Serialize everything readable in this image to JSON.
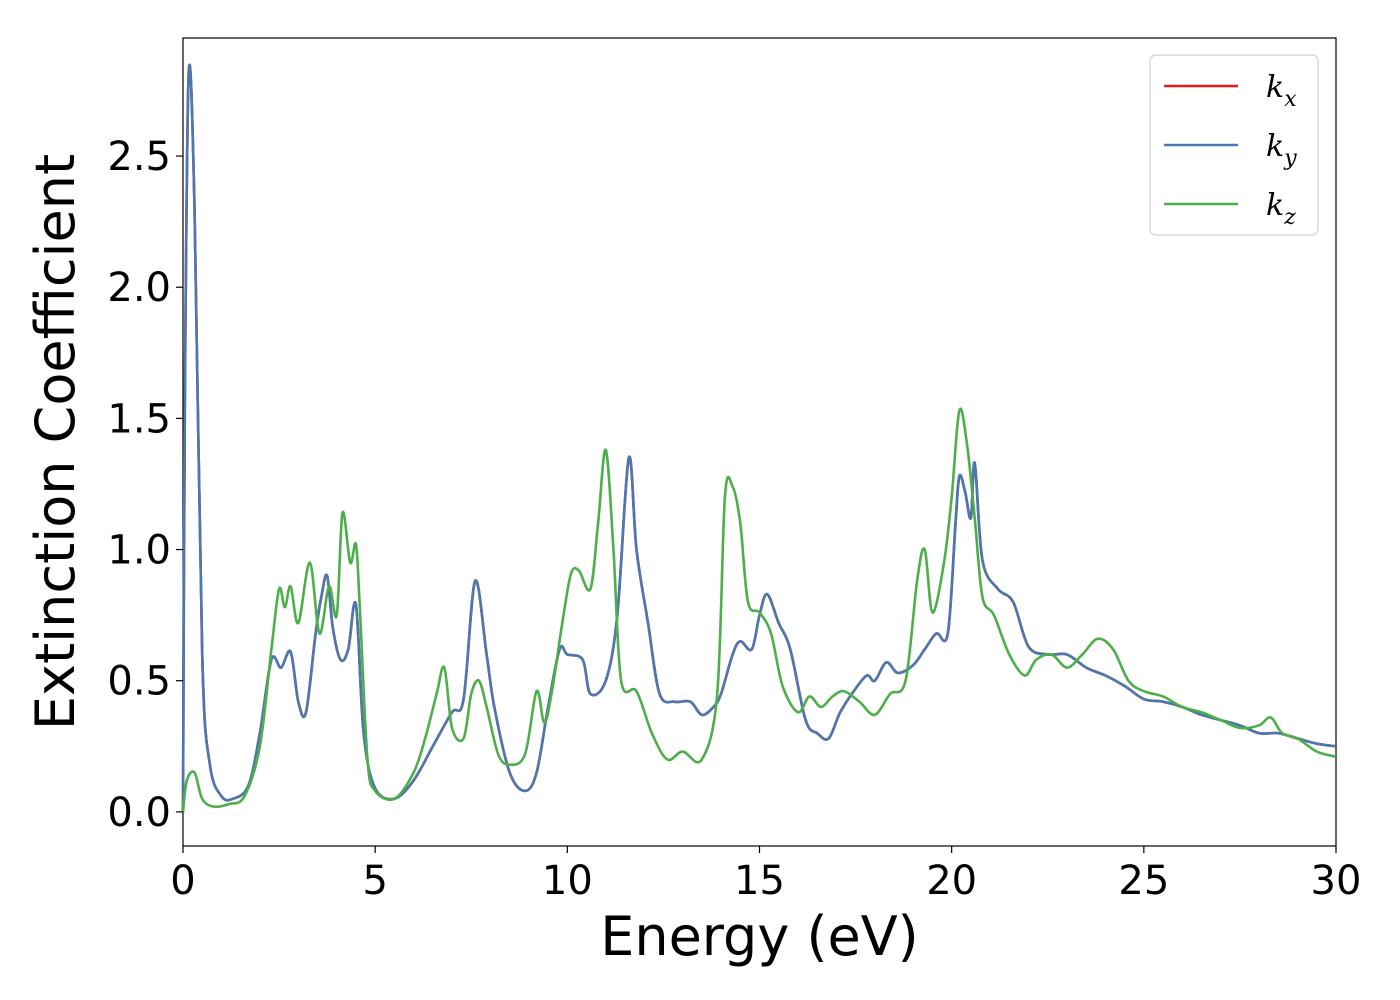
{
  "chart_data": {
    "type": "line",
    "title": "",
    "xlabel": "Energy (eV)",
    "ylabel": "Extinction Coefficient",
    "xlim": [
      0,
      30
    ],
    "ylim": [
      -0.13,
      2.95
    ],
    "xticks": [
      0,
      5,
      10,
      15,
      20,
      25,
      30
    ],
    "xtick_labels": [
      "0",
      "5",
      "10",
      "15",
      "20",
      "25",
      "30"
    ],
    "yticks": [
      0.0,
      0.5,
      1.0,
      1.5,
      2.0,
      2.5
    ],
    "ytick_labels": [
      "0.0",
      "0.5",
      "1.0",
      "1.5",
      "2.0",
      "2.5"
    ],
    "grid": false,
    "legend_position": "top-right",
    "series": [
      {
        "name": "k_x",
        "legend_main": "k",
        "legend_sub": "x",
        "color": "#e41a1c",
        "x": [
          0,
          0.05,
          0.15,
          0.3,
          0.5,
          0.7,
          1.0,
          1.3,
          1.7,
          2.0,
          2.3,
          2.55,
          2.8,
          3.0,
          3.2,
          3.45,
          3.6,
          3.75,
          3.9,
          4.1,
          4.3,
          4.5,
          4.7,
          5.0,
          5.5,
          6.0,
          6.5,
          7.0,
          7.3,
          7.6,
          7.9,
          8.1,
          8.5,
          8.9,
          9.2,
          9.5,
          9.8,
          10.0,
          10.4,
          10.6,
          11.0,
          11.3,
          11.6,
          11.8,
          12.1,
          12.4,
          12.8,
          13.2,
          13.5,
          13.8,
          14.0,
          14.3,
          14.5,
          14.8,
          15.0,
          15.2,
          15.5,
          15.8,
          16.2,
          16.5,
          16.8,
          17.1,
          17.5,
          17.8,
          18.0,
          18.3,
          18.6,
          19.0,
          19.3,
          19.6,
          19.9,
          20.1,
          20.2,
          20.35,
          20.5,
          20.6,
          20.8,
          21.2,
          21.6,
          22.0,
          22.5,
          23.0,
          23.5,
          24.0,
          24.5,
          25.0,
          25.5,
          26.0,
          26.5,
          27.0,
          27.5,
          28.0,
          28.5,
          29.0,
          29.5,
          30.0
        ],
        "y": [
          0.0,
          1.6,
          2.82,
          2.3,
          0.6,
          0.18,
          0.06,
          0.05,
          0.1,
          0.3,
          0.58,
          0.55,
          0.61,
          0.42,
          0.38,
          0.68,
          0.82,
          0.9,
          0.7,
          0.58,
          0.62,
          0.79,
          0.3,
          0.09,
          0.05,
          0.12,
          0.25,
          0.38,
          0.43,
          0.88,
          0.6,
          0.4,
          0.15,
          0.08,
          0.15,
          0.4,
          0.62,
          0.6,
          0.58,
          0.45,
          0.5,
          0.75,
          1.35,
          1.0,
          0.72,
          0.45,
          0.42,
          0.42,
          0.37,
          0.4,
          0.45,
          0.6,
          0.65,
          0.62,
          0.75,
          0.83,
          0.72,
          0.62,
          0.35,
          0.3,
          0.28,
          0.38,
          0.47,
          0.52,
          0.5,
          0.57,
          0.53,
          0.56,
          0.62,
          0.68,
          0.68,
          1.1,
          1.28,
          1.22,
          1.12,
          1.33,
          0.96,
          0.85,
          0.8,
          0.63,
          0.6,
          0.6,
          0.55,
          0.52,
          0.48,
          0.43,
          0.42,
          0.4,
          0.37,
          0.35,
          0.33,
          0.3,
          0.3,
          0.28,
          0.26,
          0.25
        ]
      },
      {
        "name": "k_y",
        "legend_main": "k",
        "legend_sub": "y",
        "color": "#4a78b0",
        "x": [
          0,
          0.05,
          0.15,
          0.3,
          0.5,
          0.7,
          1.0,
          1.3,
          1.7,
          2.0,
          2.3,
          2.55,
          2.8,
          3.0,
          3.2,
          3.45,
          3.6,
          3.75,
          3.9,
          4.1,
          4.3,
          4.5,
          4.7,
          5.0,
          5.5,
          6.0,
          6.5,
          7.0,
          7.3,
          7.6,
          7.9,
          8.1,
          8.5,
          8.9,
          9.2,
          9.5,
          9.8,
          10.0,
          10.4,
          10.6,
          11.0,
          11.3,
          11.6,
          11.8,
          12.1,
          12.4,
          12.8,
          13.2,
          13.5,
          13.8,
          14.0,
          14.3,
          14.5,
          14.8,
          15.0,
          15.2,
          15.5,
          15.8,
          16.2,
          16.5,
          16.8,
          17.1,
          17.5,
          17.8,
          18.0,
          18.3,
          18.6,
          19.0,
          19.3,
          19.6,
          19.9,
          20.1,
          20.2,
          20.35,
          20.5,
          20.6,
          20.8,
          21.2,
          21.6,
          22.0,
          22.5,
          23.0,
          23.5,
          24.0,
          24.5,
          25.0,
          25.5,
          26.0,
          26.5,
          27.0,
          27.5,
          28.0,
          28.5,
          29.0,
          29.5,
          30.0
        ],
        "y": [
          0.0,
          1.6,
          2.82,
          2.3,
          0.6,
          0.18,
          0.06,
          0.05,
          0.1,
          0.3,
          0.58,
          0.55,
          0.61,
          0.42,
          0.38,
          0.68,
          0.82,
          0.9,
          0.7,
          0.58,
          0.62,
          0.79,
          0.3,
          0.09,
          0.05,
          0.12,
          0.25,
          0.38,
          0.43,
          0.88,
          0.6,
          0.4,
          0.15,
          0.08,
          0.15,
          0.4,
          0.62,
          0.6,
          0.58,
          0.45,
          0.5,
          0.75,
          1.35,
          1.0,
          0.72,
          0.45,
          0.42,
          0.42,
          0.37,
          0.4,
          0.45,
          0.6,
          0.65,
          0.62,
          0.75,
          0.83,
          0.72,
          0.62,
          0.35,
          0.3,
          0.28,
          0.38,
          0.47,
          0.52,
          0.5,
          0.57,
          0.53,
          0.56,
          0.62,
          0.68,
          0.68,
          1.1,
          1.28,
          1.22,
          1.12,
          1.33,
          0.96,
          0.85,
          0.8,
          0.63,
          0.6,
          0.6,
          0.55,
          0.52,
          0.48,
          0.43,
          0.42,
          0.4,
          0.37,
          0.35,
          0.33,
          0.3,
          0.3,
          0.28,
          0.26,
          0.25
        ]
      },
      {
        "name": "k_z",
        "legend_main": "k",
        "legend_sub": "z",
        "color": "#4daf4a",
        "x": [
          0,
          0.1,
          0.3,
          0.5,
          0.8,
          1.2,
          1.6,
          2.0,
          2.3,
          2.5,
          2.65,
          2.8,
          3.0,
          3.3,
          3.55,
          3.8,
          4.0,
          4.15,
          4.35,
          4.5,
          4.6,
          4.8,
          5.0,
          5.5,
          6.0,
          6.3,
          6.6,
          6.8,
          7.0,
          7.3,
          7.5,
          7.7,
          7.9,
          8.2,
          8.5,
          8.9,
          9.2,
          9.4,
          9.6,
          9.9,
          10.1,
          10.3,
          10.6,
          10.8,
          11.0,
          11.2,
          11.4,
          11.8,
          12.2,
          12.6,
          13.0,
          13.5,
          13.9,
          14.1,
          14.3,
          14.5,
          14.7,
          15.0,
          15.3,
          15.6,
          16.0,
          16.3,
          16.6,
          16.9,
          17.2,
          17.6,
          18.0,
          18.4,
          18.8,
          19.1,
          19.3,
          19.5,
          19.8,
          20.0,
          20.2,
          20.4,
          20.6,
          20.8,
          21.1,
          21.5,
          21.9,
          22.2,
          22.6,
          23.0,
          23.4,
          23.8,
          24.2,
          24.6,
          25.0,
          25.5,
          26.0,
          26.5,
          27.0,
          27.5,
          28.0,
          28.3,
          28.6,
          29.0,
          29.5,
          30.0
        ],
        "y": [
          0.0,
          0.12,
          0.15,
          0.05,
          0.02,
          0.03,
          0.06,
          0.25,
          0.62,
          0.85,
          0.78,
          0.86,
          0.72,
          0.95,
          0.68,
          0.86,
          0.75,
          1.14,
          0.95,
          1.02,
          0.78,
          0.2,
          0.08,
          0.05,
          0.15,
          0.28,
          0.45,
          0.55,
          0.32,
          0.28,
          0.45,
          0.5,
          0.4,
          0.22,
          0.18,
          0.22,
          0.46,
          0.34,
          0.46,
          0.75,
          0.91,
          0.92,
          0.85,
          1.1,
          1.38,
          1.0,
          0.5,
          0.46,
          0.3,
          0.2,
          0.23,
          0.2,
          0.45,
          1.2,
          1.24,
          1.1,
          0.8,
          0.76,
          0.68,
          0.48,
          0.38,
          0.44,
          0.4,
          0.44,
          0.46,
          0.42,
          0.37,
          0.45,
          0.5,
          0.88,
          1.0,
          0.76,
          0.95,
          1.2,
          1.53,
          1.4,
          1.12,
          0.82,
          0.75,
          0.6,
          0.52,
          0.58,
          0.6,
          0.55,
          0.6,
          0.66,
          0.62,
          0.5,
          0.46,
          0.44,
          0.4,
          0.38,
          0.35,
          0.32,
          0.33,
          0.36,
          0.3,
          0.28,
          0.23,
          0.21
        ]
      }
    ]
  }
}
